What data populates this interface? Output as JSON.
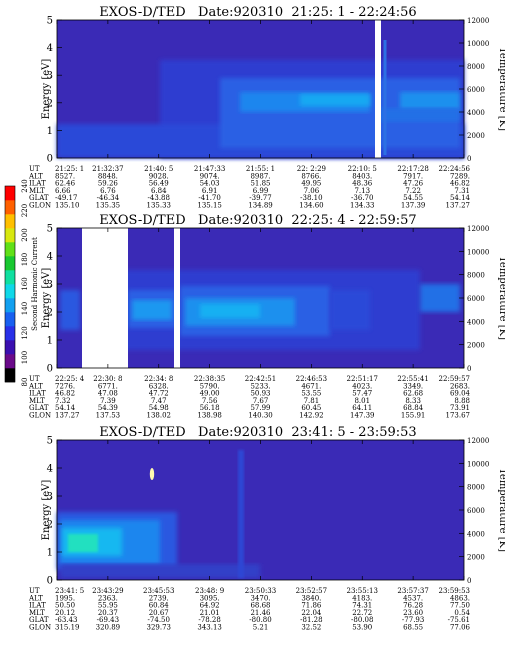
{
  "colorbar": {
    "label": "Second Harmonic Current",
    "ticks": [
      "80",
      "100",
      "120",
      "140",
      "160",
      "180",
      "200",
      "220",
      "240"
    ],
    "colors": [
      "#000000",
      "#6a0a8a",
      "#3a0fb0",
      "#2830e8",
      "#1860f0",
      "#12a0f0",
      "#10d8e8",
      "#10e0a0",
      "#18c830",
      "#60e018",
      "#d8e810",
      "#ffc000",
      "#ff6000",
      "#ff0000"
    ]
  },
  "chart_data": [
    {
      "type": "heatmap",
      "title": "EXOS-D/TED   Date:920310  21:25: 1 - 22:24:56",
      "ylabel": "Energy [eV]",
      "y2label": "Temperature [K]",
      "ylim": [
        0,
        5
      ],
      "y2lim": [
        0,
        12000
      ],
      "yticks": [
        "0",
        "1",
        "2",
        "3",
        "4",
        "5"
      ],
      "y2ticks": [
        "0",
        "2000",
        "4000",
        "6000",
        "8000",
        "10000",
        "12000"
      ],
      "row_labels": [
        "UT",
        "ALT",
        "ILAT",
        "MLT",
        "GLAT",
        "GLON"
      ],
      "columns": [
        [
          "21:25: 1",
          "8527.",
          "62.46",
          "6.66",
          "-49.17",
          "135.10"
        ],
        [
          "21:32:37",
          "8848.",
          "59.26",
          "6.76",
          "-46.34",
          "135.35"
        ],
        [
          "21:40: 5",
          "9028.",
          "56.49",
          "6.84",
          "-43.88",
          "135.33"
        ],
        [
          "21:47:33",
          "9074.",
          "54.03",
          "6.91",
          "-41.70",
          "135.15"
        ],
        [
          "21:55: 1",
          "8987.",
          "51.85",
          "6.99",
          "-39.77",
          "134.89"
        ],
        [
          "22: 2:29",
          "8766.",
          "49.95",
          "7.06",
          "-38.10",
          "134.60"
        ],
        [
          "22:10: 5",
          "8403.",
          "48.36",
          "7.13",
          "-36.70",
          "134.33"
        ],
        [
          "22:17:28",
          "7917.",
          "47.26",
          "7.22",
          "54.55",
          "137.39"
        ],
        [
          "22:24:56",
          "7289.",
          "46.82",
          "7.31",
          "54.14",
          "137.27"
        ]
      ]
    },
    {
      "type": "heatmap",
      "title": "EXOS-D/TED   Date:920310  22:25: 4 - 22:59:57",
      "ylabel": "Energy [eV]",
      "y2label": "Temperature [K]",
      "ylim": [
        0,
        5
      ],
      "y2lim": [
        0,
        12000
      ],
      "yticks": [
        "0",
        "1",
        "2",
        "3",
        "4",
        "5"
      ],
      "y2ticks": [
        "0",
        "2000",
        "4000",
        "6000",
        "8000",
        "10000",
        "12000"
      ],
      "row_labels": [
        "UT",
        "ALT",
        "ILAT",
        "MLT",
        "GLAT",
        "GLON"
      ],
      "columns": [
        [
          "22:25: 4",
          "7276.",
          "46.82",
          "7.32",
          "54.14",
          "137.27"
        ],
        [
          "22:30: 8",
          "6771.",
          "47.08",
          "7.39",
          "54.39",
          "137.53"
        ],
        [
          "22:34: 8",
          "6328.",
          "47.72",
          "7.47",
          "54.98",
          "138.02"
        ],
        [
          "22:38:35",
          "5790.",
          "49.00",
          "7.56",
          "56.18",
          "138.98"
        ],
        [
          "22:42:51",
          "5233.",
          "50.93",
          "7.67",
          "57.99",
          "140.30"
        ],
        [
          "22:46:53",
          "4671.",
          "53.55",
          "7.81",
          "60.45",
          "142.92"
        ],
        [
          "22:51:17",
          "4023.",
          "57.47",
          "8.01",
          "64.11",
          "147.39"
        ],
        [
          "22:55:41",
          "3349.",
          "62.68",
          "8.33",
          "68.84",
          "155.91"
        ],
        [
          "22:59:57",
          "2683.",
          "69.04",
          "8.88",
          "73.91",
          "173.67"
        ]
      ]
    },
    {
      "type": "heatmap",
      "title": "EXOS-D/TED   Date:920310  23:41: 5 - 23:59:53",
      "ylabel": "Energy [eV]",
      "y2label": "Temperature [K]",
      "ylim": [
        0,
        5
      ],
      "y2lim": [
        0,
        12000
      ],
      "yticks": [
        "0",
        "1",
        "2",
        "3",
        "4",
        "5"
      ],
      "y2ticks": [
        "0",
        "2000",
        "4000",
        "6000",
        "8000",
        "10000",
        "12000"
      ],
      "row_labels": [
        "UT",
        "ALT",
        "ILAT",
        "MLT",
        "GLAT",
        "GLON"
      ],
      "columns": [
        [
          "23:41: 5",
          "1995.",
          "50.50",
          "20.12",
          "-63.43",
          "315.19"
        ],
        [
          "23:43:29",
          "2363.",
          "55.95",
          "20.37",
          "-69.43",
          "320.89"
        ],
        [
          "23:45:53",
          "2739.",
          "60.84",
          "20.67",
          "-74.50",
          "329.73"
        ],
        [
          "23:48: 9",
          "3095.",
          "64.92",
          "21.01",
          "-78.28",
          "343.13"
        ],
        [
          "23:50:33",
          "3470.",
          "68.68",
          "21.46",
          "-80.80",
          "5.21"
        ],
        [
          "23:52:57",
          "3840.",
          "71.86",
          "22.04",
          "-81.28",
          "32.52"
        ],
        [
          "23:55:13",
          "4183.",
          "74.31",
          "22.72",
          "-80.08",
          "53.90"
        ],
        [
          "23:57:37",
          "4537.",
          "76.28",
          "23.60",
          "-77.93",
          "68.55"
        ],
        [
          "23:59:53",
          "4863.",
          "77.50",
          "0.54",
          "-75.61",
          "77.06"
        ]
      ]
    }
  ]
}
